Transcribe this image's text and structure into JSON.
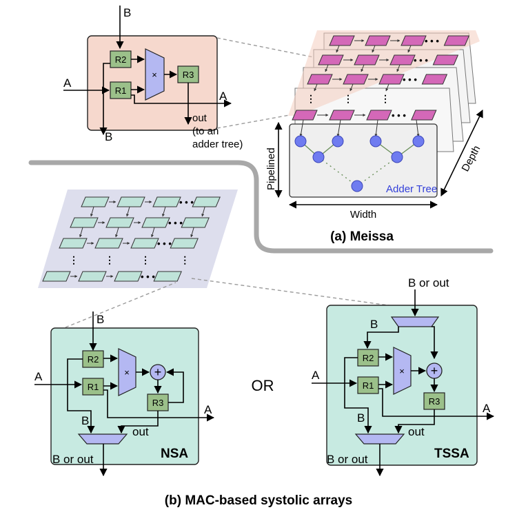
{
  "meissa": {
    "caption": "(a) Meissa",
    "mac": {
      "input_b": "B",
      "input_a": "A",
      "reg_r1": "R1",
      "reg_r2": "R2",
      "reg_r3": "R3",
      "mult": "×",
      "output_a": "A",
      "output_b": "B",
      "out_line1": "out",
      "out_line2": "(to an",
      "out_line3": "adder tree)"
    },
    "array": {
      "ellipsis": "• • •",
      "adder_tree": "Adder Tree",
      "pipelined": "Pipelined",
      "width": "Width",
      "depth": "Depth"
    }
  },
  "systolic": {
    "caption": "(b) MAC-based systolic arrays",
    "separator": "OR",
    "ellipsis": "• • •",
    "nsa": {
      "title": "NSA",
      "input_b": "B",
      "input_a": "A",
      "reg_r1": "R1",
      "reg_r2": "R2",
      "reg_r3": "R3",
      "mult": "×",
      "adder": "+",
      "output_a": "A",
      "mux_b": "B",
      "mux_out": "out",
      "output": "B or out"
    },
    "tssa": {
      "title": "TSSA",
      "input_top": "B or out",
      "input_b": "B",
      "input_a": "A",
      "reg_r1": "R1",
      "reg_r2": "R2",
      "reg_r3": "R3",
      "mult": "×",
      "adder": "+",
      "output_a": "A",
      "mux_b": "B",
      "mux_out": "out",
      "output": "B or out"
    }
  },
  "colors": {
    "mac_bg": "#f6d8cd",
    "register": "#9bc08a",
    "multiplier": "#b4b8f2",
    "pe_meissa": "#d468b8",
    "adder_node": "#6f7cf0",
    "pe_systolic": "#bfe3d9",
    "systolic_bg": "#c7eae1",
    "array_bg": "#d7d8ea"
  }
}
